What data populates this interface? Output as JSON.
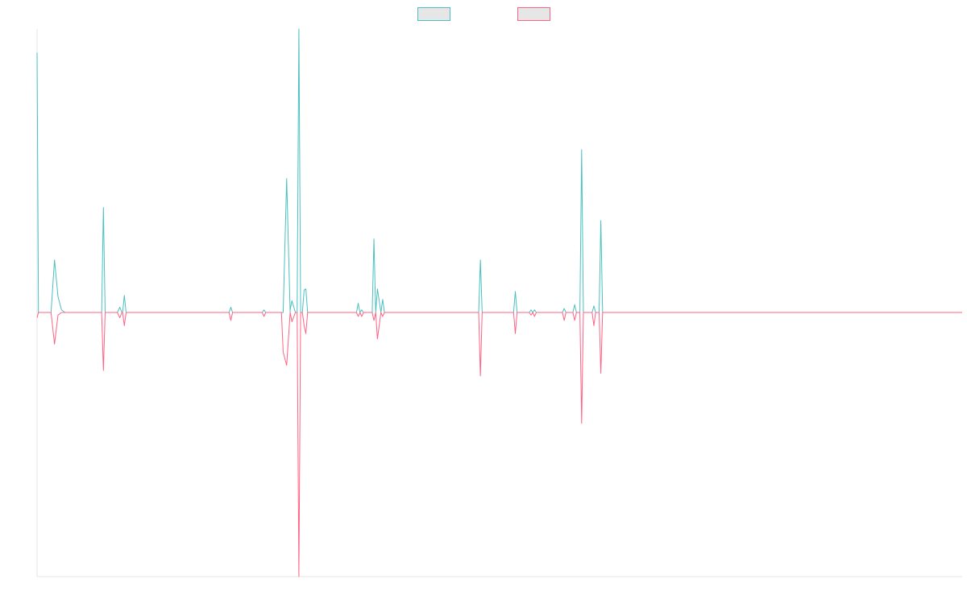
{
  "chart_data": {
    "type": "line",
    "title": "",
    "xlabel": "",
    "ylabel": "",
    "x_range": [
      0,
      265
    ],
    "ylim": [
      -1.0,
      1.08
    ],
    "grid": false,
    "legend_position": "top-center",
    "series": [
      {
        "name": "",
        "color": "#4bc0c0",
        "legend_fill": "#e6e6e6",
        "points": [
          [
            0,
            0.99
          ],
          [
            0.4,
            0.0
          ],
          [
            1,
            0.0
          ],
          [
            4,
            0.0
          ],
          [
            5,
            0.2
          ],
          [
            6,
            0.06
          ],
          [
            7,
            0.01
          ],
          [
            8,
            0.0
          ],
          [
            17,
            0.0
          ],
          [
            18.5,
            0.0
          ],
          [
            19,
            0.4
          ],
          [
            19.5,
            0.0
          ],
          [
            23,
            0.0
          ],
          [
            23.7,
            0.02
          ],
          [
            24.3,
            0.0
          ],
          [
            24.5,
            0.0
          ],
          [
            25,
            0.065
          ],
          [
            25.5,
            0.0
          ],
          [
            37,
            0.0
          ],
          [
            55,
            0.0
          ],
          [
            55.5,
            0.02
          ],
          [
            56,
            0.0
          ],
          [
            64.5,
            0.0
          ],
          [
            65,
            0.01
          ],
          [
            65.5,
            0.0
          ],
          [
            70,
            0.0
          ],
          [
            70.5,
            0.0
          ],
          [
            71.5,
            0.51
          ],
          [
            72.5,
            0.0
          ],
          [
            72.5,
            0.01
          ],
          [
            73,
            0.045
          ],
          [
            74,
            0.0
          ],
          [
            74.5,
            0.0
          ],
          [
            75,
            1.08
          ],
          [
            75.5,
            0.0
          ],
          [
            76,
            0.0
          ],
          [
            76.5,
            0.085
          ],
          [
            77,
            0.09
          ],
          [
            77.5,
            0.0
          ],
          [
            86,
            0.0
          ],
          [
            91.5,
            0.0
          ],
          [
            92,
            0.035
          ],
          [
            92.5,
            0.0
          ],
          [
            93,
            0.01
          ],
          [
            93.5,
            0.0
          ],
          [
            96,
            0.0
          ],
          [
            96.5,
            0.28
          ],
          [
            97,
            0.0
          ],
          [
            97.5,
            0.09
          ],
          [
            98.5,
            0.0
          ],
          [
            99,
            0.05
          ],
          [
            99.5,
            0.0
          ],
          [
            102.5,
            0.0
          ],
          [
            103,
            0.0
          ],
          [
            126.5,
            0.0
          ],
          [
            127,
            0.2
          ],
          [
            127.5,
            0.0
          ],
          [
            136.5,
            0.0
          ],
          [
            137,
            0.08
          ],
          [
            137.5,
            0.0
          ],
          [
            141,
            0.0
          ],
          [
            141.5,
            0.01
          ],
          [
            142,
            0.0
          ],
          [
            142.5,
            0.01
          ],
          [
            143,
            0.0
          ],
          [
            150.5,
            0.0
          ],
          [
            151,
            0.015
          ],
          [
            151.5,
            0.0
          ],
          [
            153.5,
            0.0
          ],
          [
            154,
            0.03
          ],
          [
            154.5,
            0.0
          ],
          [
            155.5,
            0.0
          ],
          [
            156,
            0.62
          ],
          [
            156.5,
            0.0
          ],
          [
            159,
            0.0
          ],
          [
            159.5,
            0.025
          ],
          [
            160,
            0.0
          ],
          [
            161,
            0.0
          ],
          [
            161.5,
            0.35
          ],
          [
            162,
            0.0
          ],
          [
            166,
            0.0
          ],
          [
            166.5,
            0.0
          ],
          [
            175,
            0.0
          ],
          [
            265,
            0.0
          ]
        ]
      },
      {
        "name": "",
        "color": "#ff6384",
        "legend_fill": "#e6e6e6",
        "points": [
          [
            0,
            -0.02
          ],
          [
            0.4,
            0.0
          ],
          [
            4,
            0.0
          ],
          [
            5,
            -0.12
          ],
          [
            6,
            -0.01
          ],
          [
            7,
            0.0
          ],
          [
            17,
            0.0
          ],
          [
            18.5,
            0.0
          ],
          [
            19,
            -0.22
          ],
          [
            19.5,
            0.0
          ],
          [
            23,
            0.0
          ],
          [
            23.7,
            -0.02
          ],
          [
            24.3,
            0.0
          ],
          [
            24.5,
            0.0
          ],
          [
            25,
            -0.05
          ],
          [
            25.5,
            0.0
          ],
          [
            37,
            0.0
          ],
          [
            55,
            0.0
          ],
          [
            55.5,
            -0.03
          ],
          [
            56,
            0.0
          ],
          [
            64.5,
            0.0
          ],
          [
            65,
            -0.015
          ],
          [
            65.5,
            0.0
          ],
          [
            70,
            0.0
          ],
          [
            70.5,
            -0.15
          ],
          [
            71.5,
            -0.2
          ],
          [
            72.5,
            0.0
          ],
          [
            73,
            -0.035
          ],
          [
            74,
            0.0
          ],
          [
            74.5,
            0.0
          ],
          [
            75,
            -1.0
          ],
          [
            75.5,
            0.0
          ],
          [
            76,
            0.0
          ],
          [
            76.5,
            -0.05
          ],
          [
            77,
            -0.08
          ],
          [
            77.5,
            0.0
          ],
          [
            86,
            0.0
          ],
          [
            91.5,
            0.0
          ],
          [
            92,
            -0.015
          ],
          [
            92.5,
            0.0
          ],
          [
            93,
            -0.015
          ],
          [
            93.5,
            0.0
          ],
          [
            96,
            0.0
          ],
          [
            96.5,
            -0.03
          ],
          [
            97,
            0.0
          ],
          [
            97.5,
            -0.1
          ],
          [
            98.5,
            0.0
          ],
          [
            99,
            -0.015
          ],
          [
            99.5,
            0.0
          ],
          [
            102.5,
            0.0
          ],
          [
            103,
            0.0
          ],
          [
            126.5,
            0.0
          ],
          [
            127,
            -0.24
          ],
          [
            127.5,
            0.0
          ],
          [
            136.5,
            0.0
          ],
          [
            137,
            -0.08
          ],
          [
            137.5,
            0.0
          ],
          [
            141,
            0.0
          ],
          [
            141.5,
            -0.01
          ],
          [
            142,
            0.0
          ],
          [
            142.5,
            -0.015
          ],
          [
            143,
            0.0
          ],
          [
            150.5,
            0.0
          ],
          [
            151,
            -0.03
          ],
          [
            151.5,
            0.0
          ],
          [
            153.5,
            0.0
          ],
          [
            154,
            -0.03
          ],
          [
            154.5,
            0.0
          ],
          [
            155.5,
            0.0
          ],
          [
            156,
            -0.42
          ],
          [
            156.5,
            0.0
          ],
          [
            159,
            0.0
          ],
          [
            159.5,
            -0.05
          ],
          [
            160,
            0.0
          ],
          [
            161,
            0.0
          ],
          [
            161.5,
            -0.23
          ],
          [
            162,
            0.0
          ],
          [
            166,
            0.0
          ],
          [
            175,
            0.0
          ],
          [
            265,
            0.0
          ]
        ]
      }
    ]
  }
}
